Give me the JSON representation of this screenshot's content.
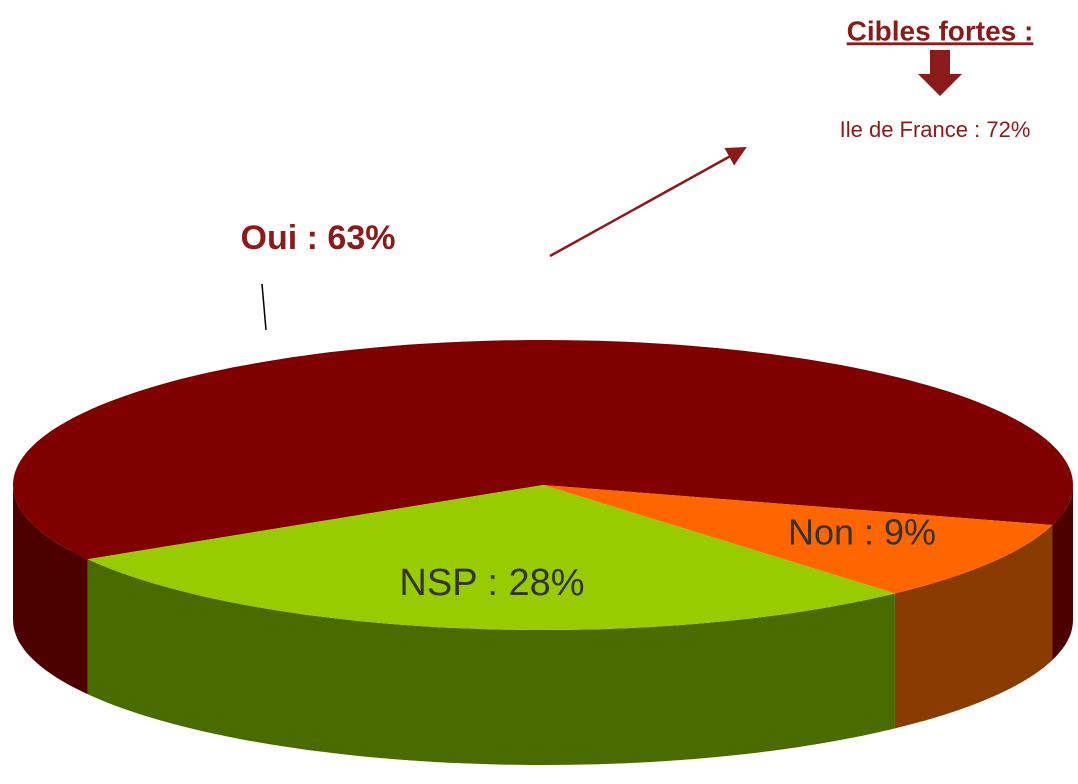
{
  "chart_data": {
    "type": "pie",
    "values": [
      63,
      9,
      28
    ],
    "value_labels": [
      "Oui : 63%",
      "Non : 9%",
      "NSP : 28%"
    ],
    "colors": [
      "#800000",
      "#ff6600",
      "#99cc00"
    ],
    "side_colors": [
      "#4d0000",
      "#8a3b00",
      "#4a6b00"
    ],
    "three_d": true,
    "annotations": {
      "heading": "Cibles fortes :",
      "detail": "Ile de France : 72%"
    }
  }
}
